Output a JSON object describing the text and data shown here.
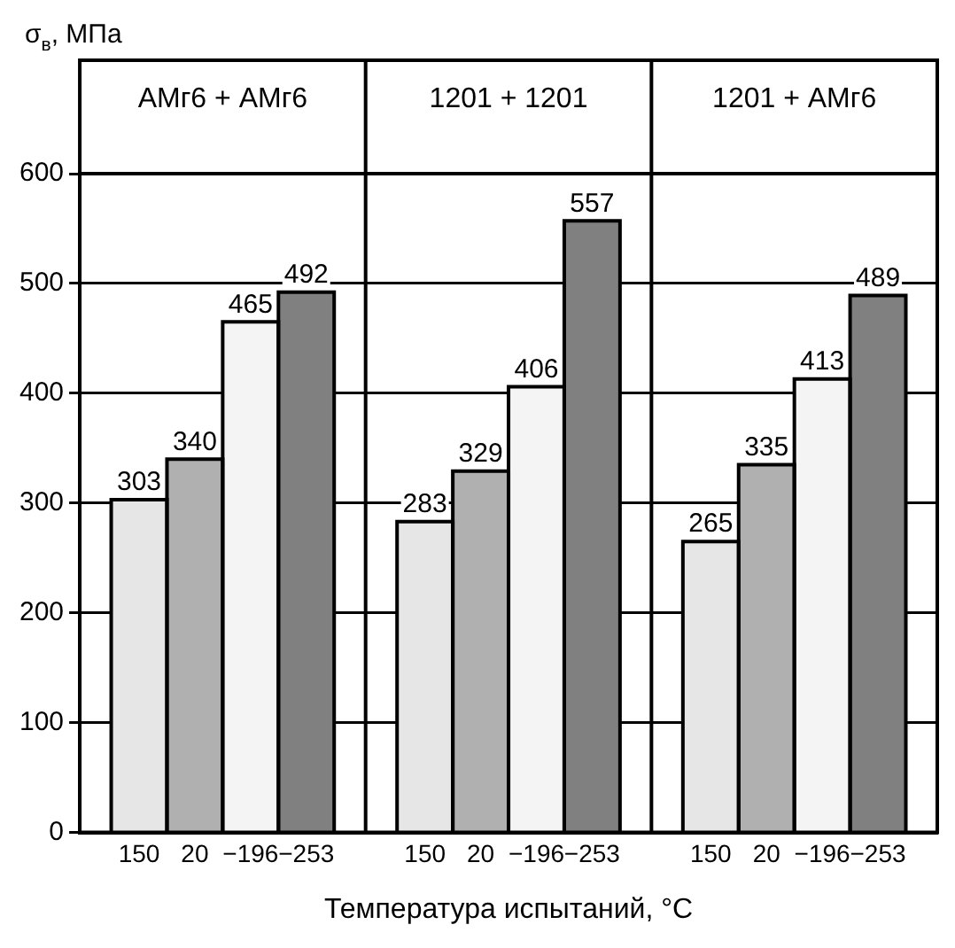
{
  "chart_data": {
    "type": "bar",
    "ylabel": "σ$_{в}$, МПа",
    "xlabel": "Температура испытаний, °C",
    "categories": [
      "АМг6 + АМг6",
      "1201 + 1201",
      "1201 + АМг6"
    ],
    "series": [
      {
        "name": "150",
        "color": "#e6e6e6",
        "values": [
          303,
          283,
          265
        ]
      },
      {
        "name": "20",
        "color": "#b0b0b0",
        "values": [
          340,
          329,
          335
        ]
      },
      {
        "name": "−196",
        "color": "#f4f4f4",
        "values": [
          465,
          406,
          413
        ]
      },
      {
        "name": "−253",
        "color": "#808080",
        "values": [
          492,
          557,
          489
        ]
      }
    ],
    "ylim": [
      0,
      600
    ],
    "yticks": [
      0,
      100,
      200,
      300,
      400,
      500,
      600
    ],
    "grid": "y",
    "legend": false,
    "data_labels": true
  }
}
